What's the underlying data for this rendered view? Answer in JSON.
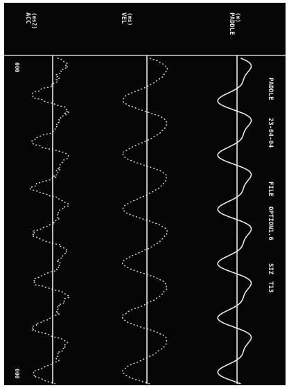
{
  "chart_data": {
    "type": "line",
    "orientation": "rotated-90-clockwise",
    "header": {
      "run_name": "PADDLE",
      "run_number": "23-04-04",
      "file_label": "FILE",
      "file_name": "OPTION1.6",
      "extra_label": "SIZ",
      "extra_value": "T13"
    },
    "corner_label": "000",
    "series": [
      {
        "name": "ACC",
        "unit": "(ms2)",
        "line_style": "dotted",
        "cycles": 7,
        "amplitude": 0.85,
        "harmonic_ratio": 0.45,
        "noise": 0.35
      },
      {
        "name": "VEL",
        "unit": "(ms)",
        "line_style": "dotted",
        "cycles": 6,
        "amplitude": 0.9,
        "harmonic_ratio": 0.15,
        "noise": 0.1
      },
      {
        "name": "PADDLE",
        "unit": "(m)",
        "line_style": "solid",
        "cycles": 6,
        "amplitude": 0.8,
        "harmonic_ratio": 0.35,
        "noise": 0.0
      }
    ],
    "grid": false,
    "colors": {
      "background": "#050505",
      "trace": "#e8e8e8",
      "page": "#ffffff"
    }
  }
}
